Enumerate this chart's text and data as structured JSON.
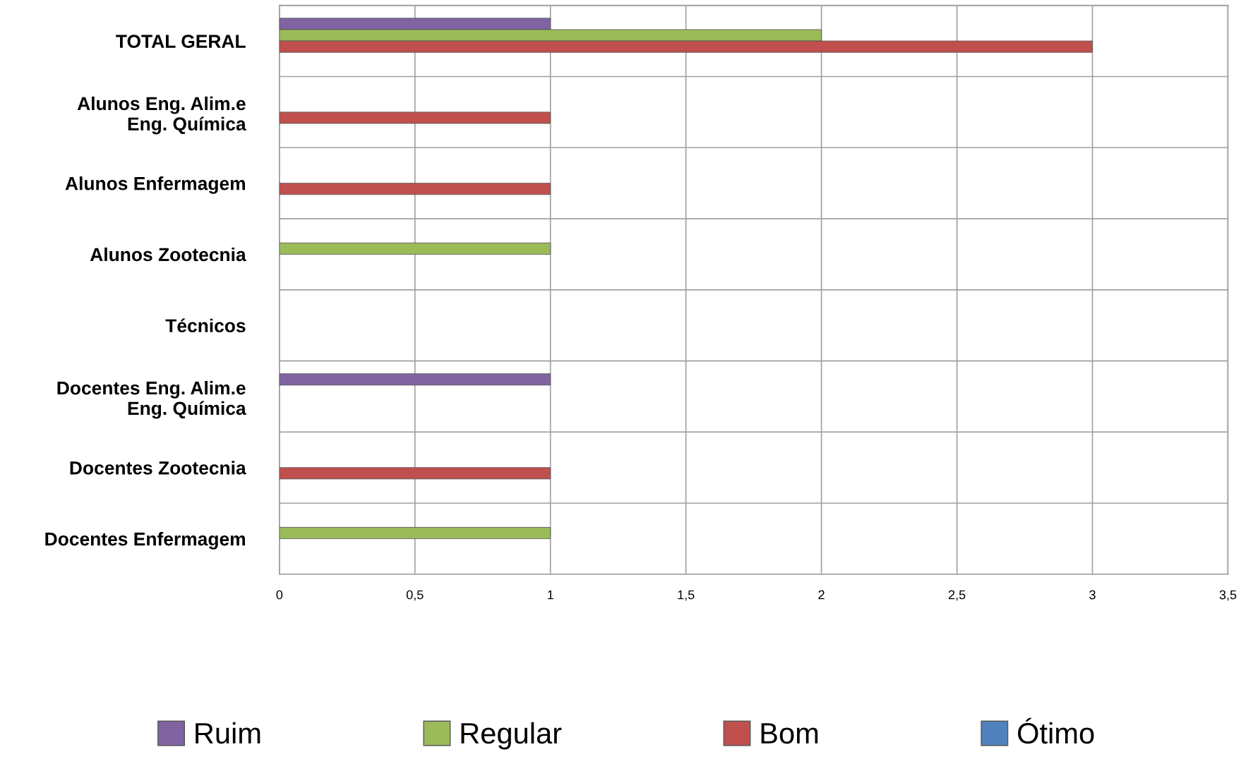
{
  "chart_data": {
    "type": "bar",
    "orientation": "horizontal",
    "categories": [
      "TOTAL GERAL",
      "Alunos Eng. Alim.e\nEng. Química",
      "Alunos Enfermagem",
      "Alunos Zootecnia",
      "Técnicos",
      "Docentes Eng. Alim.e\nEng. Química",
      "Docentes Zootecnia",
      "Docentes Enfermagem"
    ],
    "series": [
      {
        "name": "Ruim",
        "color": "#8064a2",
        "values": [
          1,
          null,
          null,
          null,
          null,
          1,
          null,
          null
        ]
      },
      {
        "name": "Regular",
        "color": "#9bbb59",
        "values": [
          2,
          null,
          null,
          1,
          null,
          null,
          null,
          1
        ]
      },
      {
        "name": "Bom",
        "color": "#c0504d",
        "values": [
          3,
          1,
          1,
          null,
          null,
          null,
          1,
          null
        ]
      },
      {
        "name": "Ótimo",
        "color": "#4f81bd",
        "values": [
          null,
          null,
          null,
          null,
          null,
          null,
          null,
          null
        ]
      }
    ],
    "xlim": [
      0,
      3.5
    ],
    "xticks": [
      0,
      {
        "value": 0.5,
        "label": "0,5"
      },
      1,
      {
        "value": 1.5,
        "label": "1,5"
      },
      2,
      {
        "value": 2.5,
        "label": "2,5"
      },
      3,
      {
        "value": 3.5,
        "label": "3,5"
      }
    ],
    "grid": true,
    "legend": "bottom"
  }
}
